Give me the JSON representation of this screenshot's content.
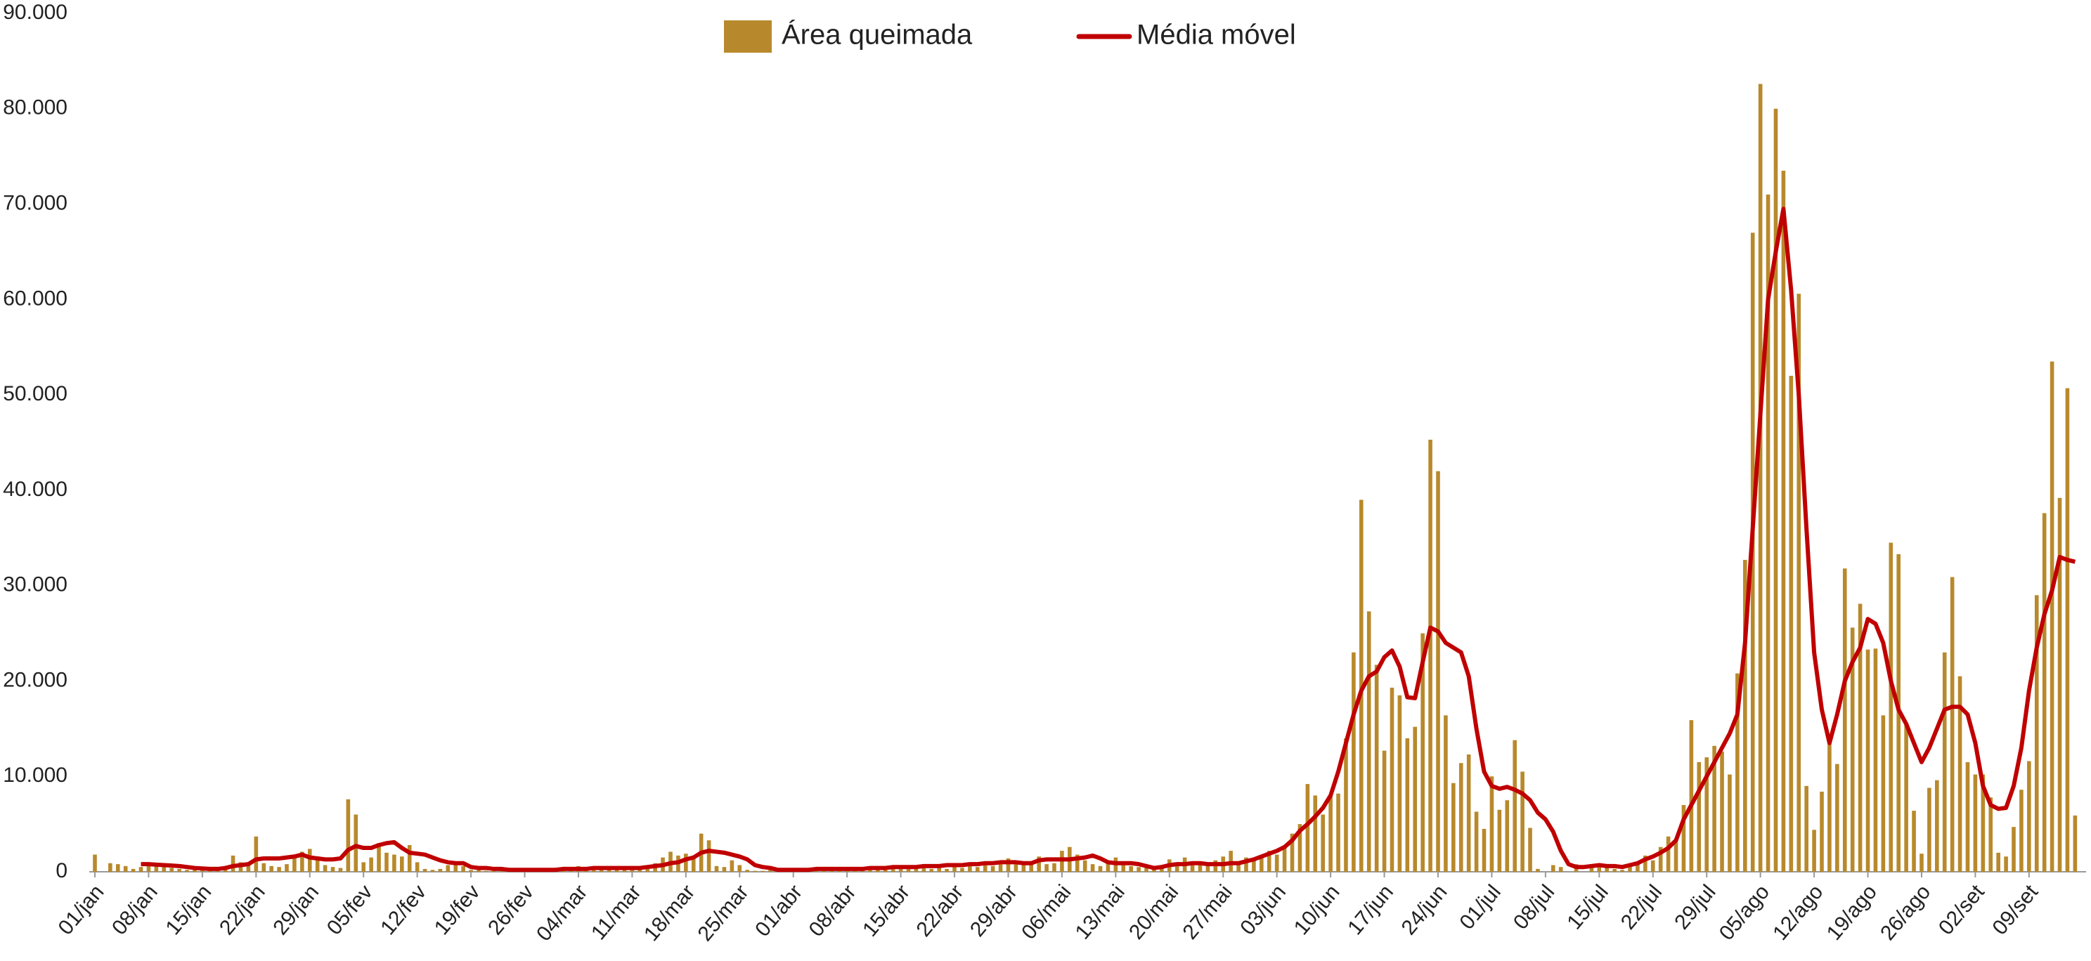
{
  "chart_data": {
    "type": "bar",
    "categories": [
      "01/jan",
      null,
      null,
      null,
      null,
      null,
      null,
      "08/jan",
      null,
      null,
      null,
      null,
      null,
      null,
      "15/jan",
      null,
      null,
      null,
      null,
      null,
      null,
      "22/jan",
      null,
      null,
      null,
      null,
      null,
      null,
      "29/jan",
      null,
      null,
      null,
      null,
      null,
      null,
      "05/fev",
      null,
      null,
      null,
      null,
      null,
      null,
      "12/fev",
      null,
      null,
      null,
      null,
      null,
      null,
      "19/fev",
      null,
      null,
      null,
      null,
      null,
      null,
      "26/fev",
      null,
      null,
      null,
      null,
      null,
      null,
      "04/mar",
      null,
      null,
      null,
      null,
      null,
      null,
      "11/mar",
      null,
      null,
      null,
      null,
      null,
      null,
      "18/mar",
      null,
      null,
      null,
      null,
      null,
      null,
      "25/mar",
      null,
      null,
      null,
      null,
      null,
      null,
      "01/abr",
      null,
      null,
      null,
      null,
      null,
      null,
      "08/abr",
      null,
      null,
      null,
      null,
      null,
      null,
      "15/abr",
      null,
      null,
      null,
      null,
      null,
      null,
      "22/abr",
      null,
      null,
      null,
      null,
      null,
      null,
      "29/abr",
      null,
      null,
      null,
      null,
      null,
      null,
      "06/mai",
      null,
      null,
      null,
      null,
      null,
      null,
      "13/mai",
      null,
      null,
      null,
      null,
      null,
      null,
      "20/mai",
      null,
      null,
      null,
      null,
      null,
      null,
      "27/mai",
      null,
      null,
      null,
      null,
      null,
      null,
      "03/jun",
      null,
      null,
      null,
      null,
      null,
      null,
      "10/jun",
      null,
      null,
      null,
      null,
      null,
      null,
      "17/jun",
      null,
      null,
      null,
      null,
      null,
      null,
      "24/jun",
      null,
      null,
      null,
      null,
      null,
      null,
      "01/jul",
      null,
      null,
      null,
      null,
      null,
      null,
      "08/jul",
      null,
      null,
      null,
      null,
      null,
      null,
      "15/jul",
      null,
      null,
      null,
      null,
      null,
      null,
      "22/jul",
      null,
      null,
      null,
      null,
      null,
      null,
      "29/jul",
      null,
      null,
      null,
      null,
      null,
      null,
      "05/ago",
      null,
      null,
      null,
      null,
      null,
      null,
      "12/ago",
      null,
      null,
      null,
      null,
      null,
      null,
      "19/ago",
      null,
      null,
      null,
      null,
      null,
      null,
      "26/ago",
      null,
      null,
      null,
      null,
      null,
      null,
      "02/set",
      null,
      null,
      null,
      null,
      null,
      null,
      "09/set",
      null,
      null,
      null,
      null,
      null,
      null
    ],
    "series": [
      {
        "name": "Área queimada",
        "color": "#b8892c",
        "values": [
          1800,
          0,
          900,
          800,
          600,
          300,
          500,
          900,
          600,
          500,
          400,
          300,
          200,
          300,
          200,
          100,
          300,
          400,
          1700,
          1000,
          800,
          3700,
          900,
          600,
          500,
          800,
          1800,
          2100,
          2400,
          1600,
          700,
          500,
          400,
          7600,
          6000,
          1000,
          1500,
          3000,
          2000,
          1800,
          1600,
          2800,
          1000,
          300,
          200,
          300,
          700,
          800,
          600,
          200,
          200,
          100,
          100,
          200,
          100,
          100,
          200,
          100,
          100,
          200,
          300,
          200,
          200,
          600,
          200,
          300,
          200,
          200,
          300,
          400,
          300,
          400,
          700,
          900,
          1500,
          2100,
          1700,
          1900,
          1500,
          4000,
          3300,
          600,
          500,
          1200,
          700,
          200,
          100,
          100,
          200,
          100,
          100,
          100,
          200,
          100,
          100,
          200,
          300,
          100,
          200,
          300,
          200,
          300,
          200,
          200,
          400,
          300,
          300,
          400,
          500,
          300,
          400,
          300,
          500,
          400,
          600,
          500,
          700,
          600,
          800,
          1400,
          800,
          700,
          900,
          1600,
          800,
          900,
          2200,
          2600,
          1800,
          1200,
          800,
          600,
          1200,
          1500,
          900,
          600,
          500,
          700,
          300,
          400,
          1300,
          900,
          1500,
          800,
          700,
          600,
          1200,
          1600,
          2200,
          900,
          1500,
          1200,
          1600,
          2200,
          1800,
          2700,
          4000,
          5000,
          9200,
          8000,
          6000,
          8000,
          8200,
          14000,
          23000,
          39000,
          27300,
          21700,
          12700,
          19300,
          18500,
          14000,
          15200,
          25000,
          45300,
          42000,
          16400,
          9300,
          11400,
          12300,
          6300,
          4500,
          10000,
          6500,
          7500,
          13800,
          10500,
          4600,
          300,
          0,
          700,
          500,
          0,
          800,
          0,
          400,
          800,
          500,
          300,
          200,
          600,
          1000,
          1700,
          1200,
          2600,
          3700,
          3300,
          7000,
          15900,
          11500,
          12000,
          13200,
          12600,
          10200,
          20800,
          32700,
          67000,
          82600,
          71000,
          80000,
          73500,
          52000,
          60600,
          9000,
          4400,
          8400,
          14200,
          11300,
          31800,
          25600,
          28100,
          23300,
          23400,
          16400,
          34500,
          33300,
          15600,
          6400,
          1900,
          8800,
          9600,
          23000,
          30900,
          20500,
          11500,
          10200,
          10200,
          7800,
          2000,
          1600,
          4700,
          8600,
          11600,
          29000,
          37600,
          53500,
          39200,
          50700,
          5900
        ]
      },
      {
        "name": "Média móvel",
        "color": "#c00000",
        "type": "line",
        "values": [
          null,
          null,
          null,
          null,
          null,
          null,
          800,
          800,
          750,
          700,
          650,
          600,
          500,
          400,
          350,
          300,
          300,
          400,
          600,
          700,
          800,
          1300,
          1400,
          1400,
          1400,
          1500,
          1600,
          1800,
          1500,
          1400,
          1300,
          1300,
          1400,
          2300,
          2700,
          2500,
          2500,
          2800,
          3000,
          3100,
          2500,
          2000,
          1900,
          1800,
          1500,
          1200,
          1000,
          900,
          900,
          500,
          400,
          400,
          300,
          300,
          200,
          200,
          200,
          200,
          200,
          200,
          200,
          300,
          300,
          300,
          300,
          400,
          400,
          400,
          400,
          400,
          400,
          400,
          500,
          600,
          700,
          900,
          1000,
          1300,
          1500,
          2000,
          2200,
          2100,
          2000,
          1800,
          1600,
          1300,
          700,
          500,
          400,
          200,
          200,
          200,
          200,
          200,
          300,
          300,
          300,
          300,
          300,
          300,
          300,
          400,
          400,
          400,
          500,
          500,
          500,
          500,
          600,
          600,
          600,
          700,
          700,
          700,
          800,
          800,
          900,
          900,
          1000,
          1000,
          1000,
          900,
          900,
          1200,
          1300,
          1300,
          1300,
          1300,
          1400,
          1500,
          1700,
          1400,
          1000,
          900,
          900,
          900,
          800,
          600,
          400,
          500,
          700,
          800,
          800,
          900,
          900,
          800,
          800,
          800,
          900,
          900,
          1100,
          1300,
          1600,
          1900,
          2200,
          2600,
          3300,
          4300,
          5000,
          5800,
          6700,
          8000,
          10500,
          13500,
          16500,
          19000,
          20500,
          21000,
          22500,
          23200,
          21500,
          18300,
          18200,
          22000,
          25600,
          25200,
          24000,
          23500,
          23000,
          20500,
          15000,
          10500,
          9000,
          8700,
          8900,
          8600,
          8200,
          7500,
          6200,
          5500,
          4200,
          2200,
          800,
          500,
          500,
          600,
          700,
          600,
          600,
          500,
          700,
          900,
          1300,
          1600,
          2000,
          2500,
          3300,
          5500,
          7000,
          8500,
          10000,
          11500,
          13000,
          14500,
          16500,
          24000,
          36000,
          48000,
          60000,
          65000,
          69500,
          61000,
          50000,
          36000,
          23000,
          17000,
          13500,
          16500,
          20000,
          22000,
          23500,
          26500,
          26000,
          24000,
          20000,
          17000,
          15500,
          13500,
          11500,
          13000,
          15000,
          17000,
          17300,
          17300,
          16500,
          13500,
          9000,
          7000,
          6600,
          6700,
          9000,
          13000,
          19000,
          23500,
          27000,
          29500,
          33000,
          32700,
          32500
        ]
      }
    ],
    "ylim": [
      0,
      90000
    ],
    "yticks": [
      0,
      {
        "value": 10000,
        "label": "10.000"
      },
      {
        "value": 20000,
        "label": "20.000"
      },
      {
        "value": 30000,
        "label": "30.000"
      },
      {
        "value": 40000,
        "label": "40.000"
      },
      {
        "value": 50000,
        "label": "50.000"
      },
      {
        "value": 60000,
        "label": "60.000"
      },
      {
        "value": 70000,
        "label": "70.000"
      },
      {
        "value": 80000,
        "label": "80.000"
      },
      {
        "value": 90000,
        "label": "90.000"
      }
    ],
    "grid": false,
    "legend": "top"
  }
}
